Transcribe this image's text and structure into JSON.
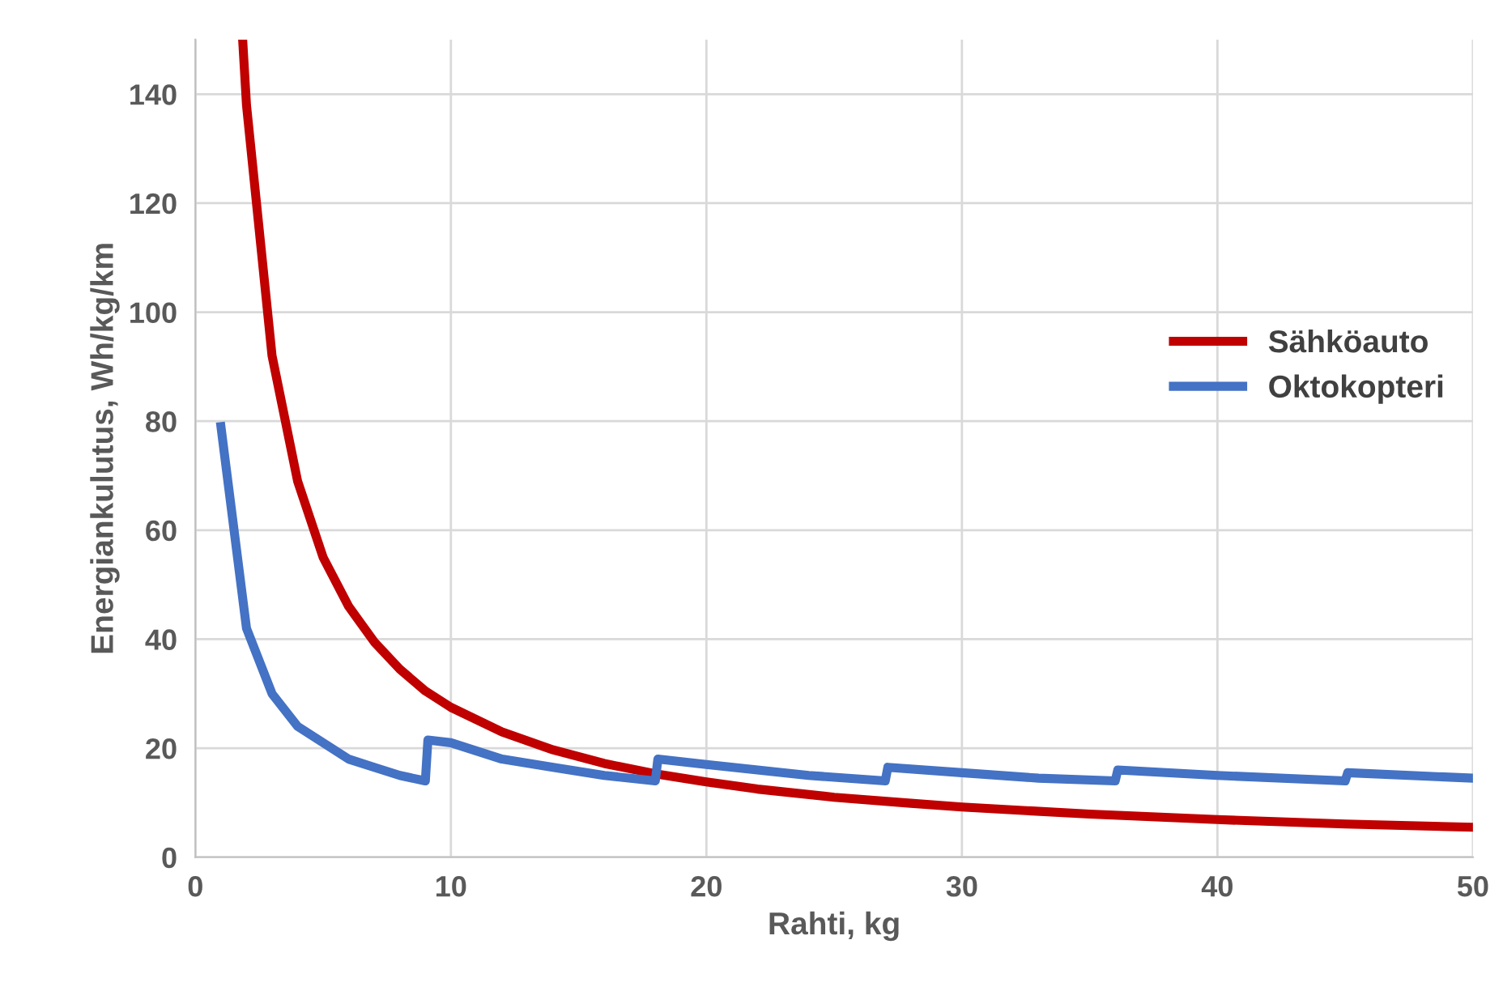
{
  "chart_data": {
    "type": "line",
    "xlabel": "Rahti, kg",
    "ylabel": "Energiankulutus, Wh/kg/km",
    "xlim": [
      0,
      50
    ],
    "ylim": [
      0,
      150
    ],
    "xticks": [
      0,
      10,
      20,
      30,
      40,
      50
    ],
    "yticks": [
      0,
      20,
      40,
      60,
      80,
      100,
      120,
      140
    ],
    "grid": true,
    "legend": "right",
    "marker": "none",
    "line_style": "solid",
    "series": [
      {
        "name": "Sähköauto",
        "color": "#c00000",
        "x": [
          1.85,
          2,
          3,
          4,
          5,
          6,
          7,
          8,
          9,
          10,
          12,
          14,
          16,
          18,
          20,
          22,
          25,
          28,
          30,
          35,
          40,
          45,
          50
        ],
        "values": [
          150,
          138,
          92,
          69,
          55,
          46,
          39.5,
          34.5,
          30.5,
          27.5,
          23,
          19.7,
          17.2,
          15.3,
          13.8,
          12.5,
          11,
          9.9,
          9.2,
          7.9,
          6.9,
          6.1,
          5.5
        ]
      },
      {
        "name": "Oktokopteri",
        "color": "#4472c4",
        "x": [
          1,
          2,
          3,
          4,
          5,
          6,
          7,
          8,
          9,
          9.1,
          10,
          12,
          14,
          16,
          18,
          18.1,
          20,
          22,
          24,
          27,
          27.1,
          30,
          33,
          36,
          36.1,
          40,
          45,
          45.1,
          50
        ],
        "values": [
          79,
          42,
          30,
          24,
          21,
          18,
          16.5,
          15,
          14,
          21.5,
          21,
          18,
          16.5,
          15,
          14,
          18,
          17,
          16,
          15,
          14,
          16.5,
          15.5,
          14.5,
          14,
          16,
          15,
          14,
          15.5,
          14.5
        ]
      }
    ]
  }
}
